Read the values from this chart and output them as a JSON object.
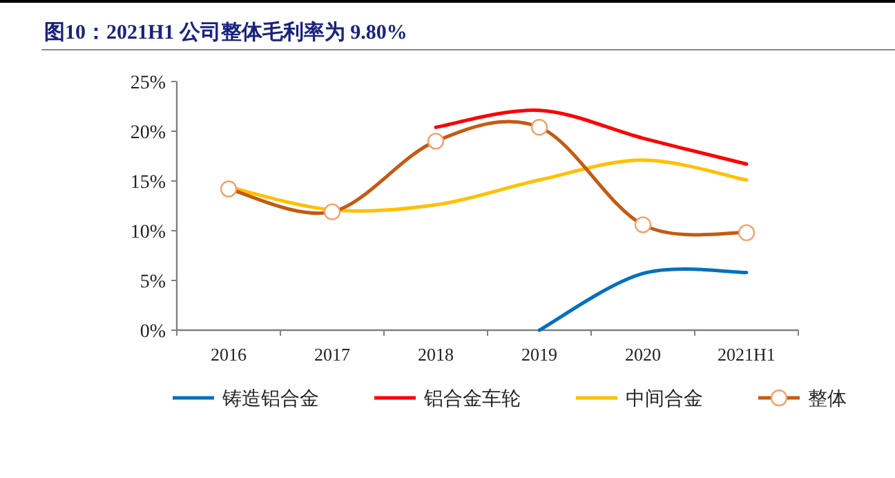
{
  "chart_data": {
    "type": "line",
    "title": "图10：2021H1 公司整体毛利率为 9.80%",
    "categories": [
      "2016",
      "2017",
      "2018",
      "2019",
      "2020",
      "2021H1"
    ],
    "series": [
      {
        "name": "铸造铝合金",
        "color": "#0070c0",
        "values": [
          null,
          null,
          null,
          0,
          5.7,
          5.8
        ]
      },
      {
        "name": "铝合金车轮",
        "color": "#ff0000",
        "values": [
          null,
          null,
          20.4,
          22.1,
          19.3,
          16.7
        ]
      },
      {
        "name": "中间合金",
        "color": "#ffc000",
        "values": [
          14.4,
          12.1,
          12.6,
          15.1,
          17.1,
          15.1
        ]
      },
      {
        "name": "整体",
        "color": "#c55a11",
        "marker": "circle",
        "values": [
          14.2,
          11.9,
          19.0,
          20.4,
          10.6,
          9.8
        ]
      }
    ],
    "ylim": [
      0,
      25
    ],
    "yticks": [
      {
        "value": 0,
        "label": "0%"
      },
      {
        "value": 5,
        "label": "5%"
      },
      {
        "value": 10,
        "label": "10%"
      },
      {
        "value": 15,
        "label": "15%"
      },
      {
        "value": 20,
        "label": "20%"
      },
      {
        "value": 25,
        "label": "25%"
      }
    ],
    "grid": false,
    "legend": "bottom"
  }
}
